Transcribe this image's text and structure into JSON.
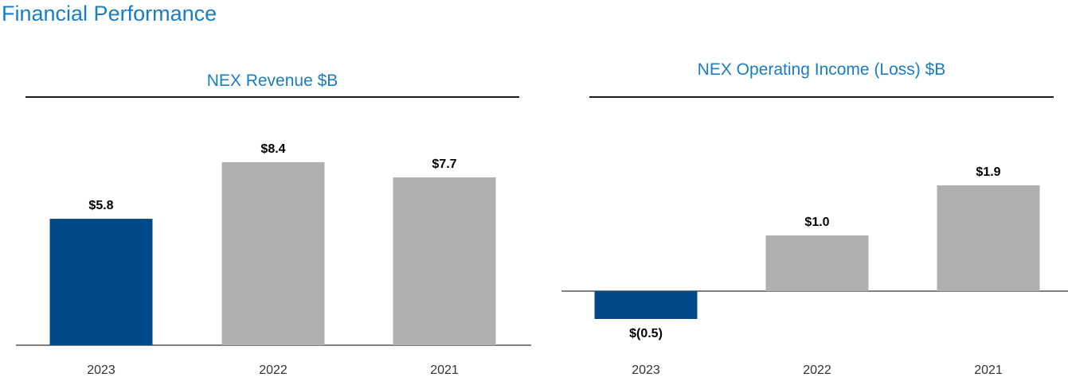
{
  "page": {
    "title": "Financial Performance"
  },
  "colors": {
    "highlight": "#004b87",
    "other": "#afafaf",
    "title": "#1a7dc4",
    "axis": "#7f7f7f"
  },
  "chart_data": [
    {
      "type": "bar",
      "title": "NEX Revenue $B",
      "xlabel": "",
      "ylabel": "",
      "categories": [
        "2023",
        "2022",
        "2021"
      ],
      "values": [
        5.8,
        8.4,
        7.7
      ],
      "value_labels": [
        "$5.8",
        "$8.4",
        "$7.7"
      ],
      "bar_colors": [
        "#004b87",
        "#afafaf",
        "#afafaf"
      ],
      "ylim": [
        0,
        10
      ],
      "grid": false,
      "legend": "none"
    },
    {
      "type": "bar",
      "title": "NEX Operating Income (Loss) $B",
      "xlabel": "",
      "ylabel": "",
      "categories": [
        "2023",
        "2022",
        "2021"
      ],
      "values": [
        -0.5,
        1.0,
        1.9
      ],
      "value_labels": [
        "$(0.5)",
        "$1.0",
        "$1.9"
      ],
      "bar_colors": [
        "#004b87",
        "#afafaf",
        "#afafaf"
      ],
      "ylim": [
        -1,
        3
      ],
      "grid": false,
      "legend": "none"
    }
  ]
}
